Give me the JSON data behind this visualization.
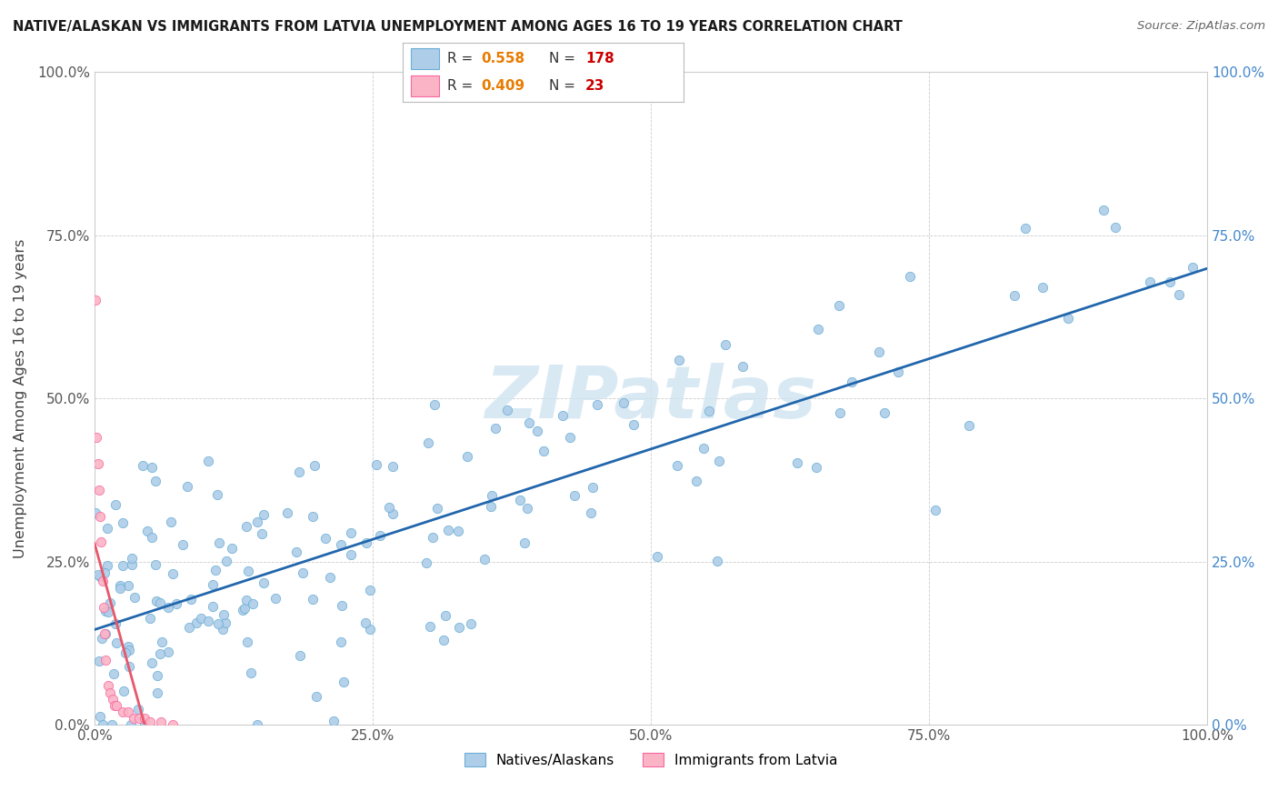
{
  "title": "NATIVE/ALASKAN VS IMMIGRANTS FROM LATVIA UNEMPLOYMENT AMONG AGES 16 TO 19 YEARS CORRELATION CHART",
  "source": "Source: ZipAtlas.com",
  "ylabel": "Unemployment Among Ages 16 to 19 years",
  "xlim": [
    0.0,
    1.0
  ],
  "ylim": [
    0.0,
    1.0
  ],
  "blue_R": 0.558,
  "blue_N": 178,
  "pink_R": 0.409,
  "pink_N": 23,
  "blue_color": "#aecde8",
  "blue_edge": "#6baed6",
  "pink_color": "#fbb4c6",
  "pink_edge": "#f768a1",
  "blue_line_color": "#2166ac",
  "pink_line_color": "#e8576a",
  "legend_label_blue": "Natives/Alaskans",
  "legend_label_pink": "Immigrants from Latvia",
  "xtick_labels": [
    "0.0%",
    "25.0%",
    "50.0%",
    "75.0%",
    "100.0%"
  ],
  "ytick_labels": [
    "0.0%",
    "25.0%",
    "50.0%",
    "75.0%",
    "100.0%"
  ],
  "xtick_values": [
    0.0,
    0.25,
    0.5,
    0.75,
    1.0
  ],
  "ytick_values": [
    0.0,
    0.25,
    0.5,
    0.75,
    1.0
  ],
  "right_ytick_labels": [
    "100.0%",
    "75.0%",
    "50.0%",
    "25.0%",
    "0.0%"
  ],
  "right_ytick_values": [
    1.0,
    0.75,
    0.5,
    0.25,
    0.0
  ],
  "watermark_color": "#d0e4f0",
  "R_color": "#e87b00",
  "N_color": "#cc0000"
}
